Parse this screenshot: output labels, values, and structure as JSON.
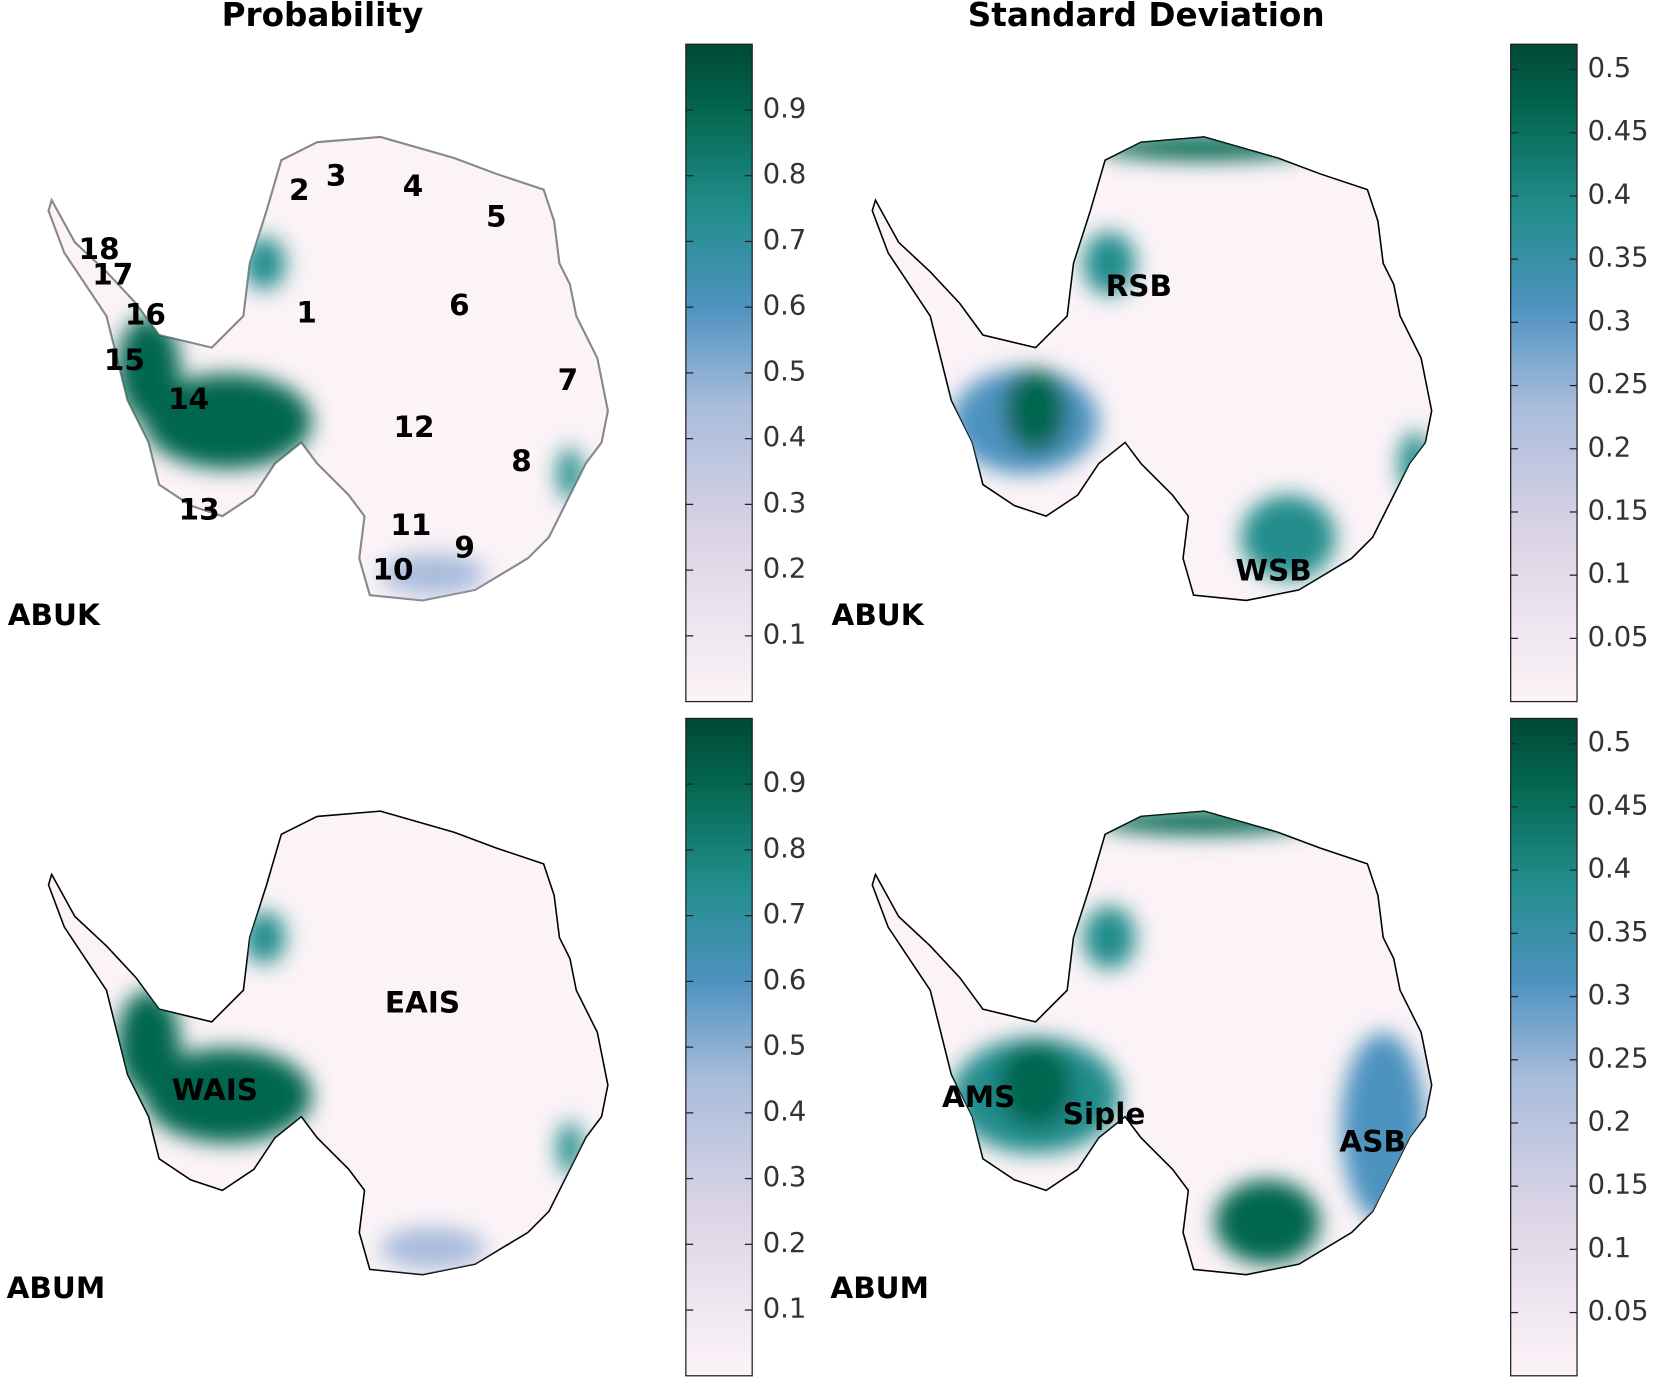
{
  "columns": [
    {
      "title": "Probability"
    },
    {
      "title": "Standard Deviation"
    }
  ],
  "panels": [
    {
      "model": "ABUK",
      "labels": [
        "1",
        "2",
        "3",
        "4",
        "5",
        "6",
        "7",
        "8",
        "9",
        "10",
        "11",
        "12",
        "13",
        "14",
        "15",
        "16",
        "17",
        "18"
      ],
      "colorbar": {
        "lim": [
          0,
          1
        ],
        "ticks": [
          0.1,
          0.2,
          0.3,
          0.4,
          0.5,
          0.6,
          0.7,
          0.8,
          0.9
        ]
      }
    },
    {
      "model": "ABUK",
      "labels": [
        "RSB",
        "WSB"
      ],
      "colorbar": {
        "lim": [
          0,
          0.52
        ],
        "ticks": [
          0.05,
          0.1,
          0.15,
          0.2,
          0.25,
          0.3,
          0.35,
          0.4,
          0.45,
          0.5
        ]
      }
    },
    {
      "model": "ABUM",
      "labels": [
        "EAIS",
        "WAIS"
      ],
      "colorbar": {
        "lim": [
          0,
          1
        ],
        "ticks": [
          0.1,
          0.2,
          0.3,
          0.4,
          0.5,
          0.6,
          0.7,
          0.8,
          0.9
        ]
      }
    },
    {
      "model": "ABUM",
      "labels": [
        "AMS",
        "Siple",
        "ASB"
      ],
      "colorbar": {
        "lim": [
          0,
          0.52
        ],
        "ticks": [
          0.05,
          0.1,
          0.15,
          0.2,
          0.25,
          0.3,
          0.35,
          0.4,
          0.45,
          0.5
        ]
      }
    }
  ]
}
